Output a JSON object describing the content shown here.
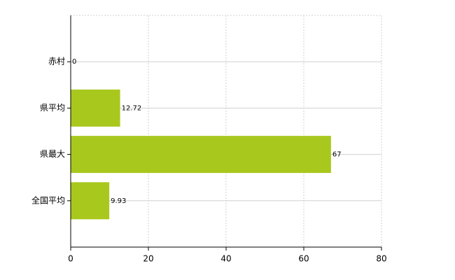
{
  "chart_data": {
    "type": "hbar",
    "categories": [
      "赤村",
      "県平均",
      "県最大",
      "全国平均"
    ],
    "values": [
      0,
      12.72,
      67,
      9.93
    ],
    "color": "#a8c81e",
    "xlim": [
      0,
      80
    ],
    "xticks": [
      0,
      20,
      40,
      60,
      80
    ],
    "grid": true
  }
}
